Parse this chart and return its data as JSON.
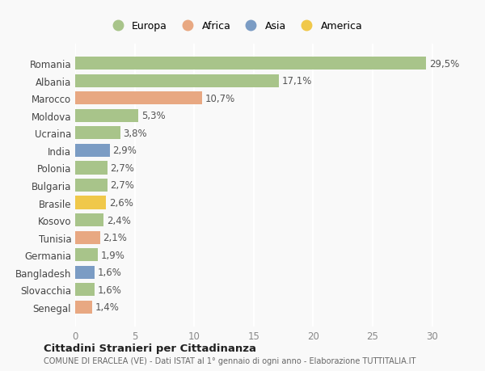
{
  "categories": [
    "Romania",
    "Albania",
    "Marocco",
    "Moldova",
    "Ucraina",
    "India",
    "Polonia",
    "Bulgaria",
    "Brasile",
    "Kosovo",
    "Tunisia",
    "Germania",
    "Bangladesh",
    "Slovacchia",
    "Senegal"
  ],
  "values": [
    29.5,
    17.1,
    10.7,
    5.3,
    3.8,
    2.9,
    2.7,
    2.7,
    2.6,
    2.4,
    2.1,
    1.9,
    1.6,
    1.6,
    1.4
  ],
  "labels": [
    "29,5%",
    "17,1%",
    "10,7%",
    "5,3%",
    "3,8%",
    "2,9%",
    "2,7%",
    "2,7%",
    "2,6%",
    "2,4%",
    "2,1%",
    "1,9%",
    "1,6%",
    "1,6%",
    "1,4%"
  ],
  "continents": [
    "Europa",
    "Europa",
    "Africa",
    "Europa",
    "Europa",
    "Asia",
    "Europa",
    "Europa",
    "America",
    "Europa",
    "Africa",
    "Europa",
    "Asia",
    "Europa",
    "Africa"
  ],
  "colors": {
    "Europa": "#a8c48a",
    "Africa": "#e8a882",
    "Asia": "#7b9cc4",
    "America": "#f0c84a"
  },
  "xlim": [
    0,
    32
  ],
  "xticks": [
    0,
    5,
    10,
    15,
    20,
    25,
    30
  ],
  "title": "Cittadini Stranieri per Cittadinanza",
  "subtitle": "COMUNE DI ERACLEA (VE) - Dati ISTAT al 1° gennaio di ogni anno - Elaborazione TUTTITALIA.IT",
  "background_color": "#f9f9f9",
  "bar_height": 0.75,
  "grid_color": "#ffffff",
  "label_fontsize": 8.5,
  "tick_fontsize": 8.5,
  "legend_order": [
    "Europa",
    "Africa",
    "Asia",
    "America"
  ]
}
